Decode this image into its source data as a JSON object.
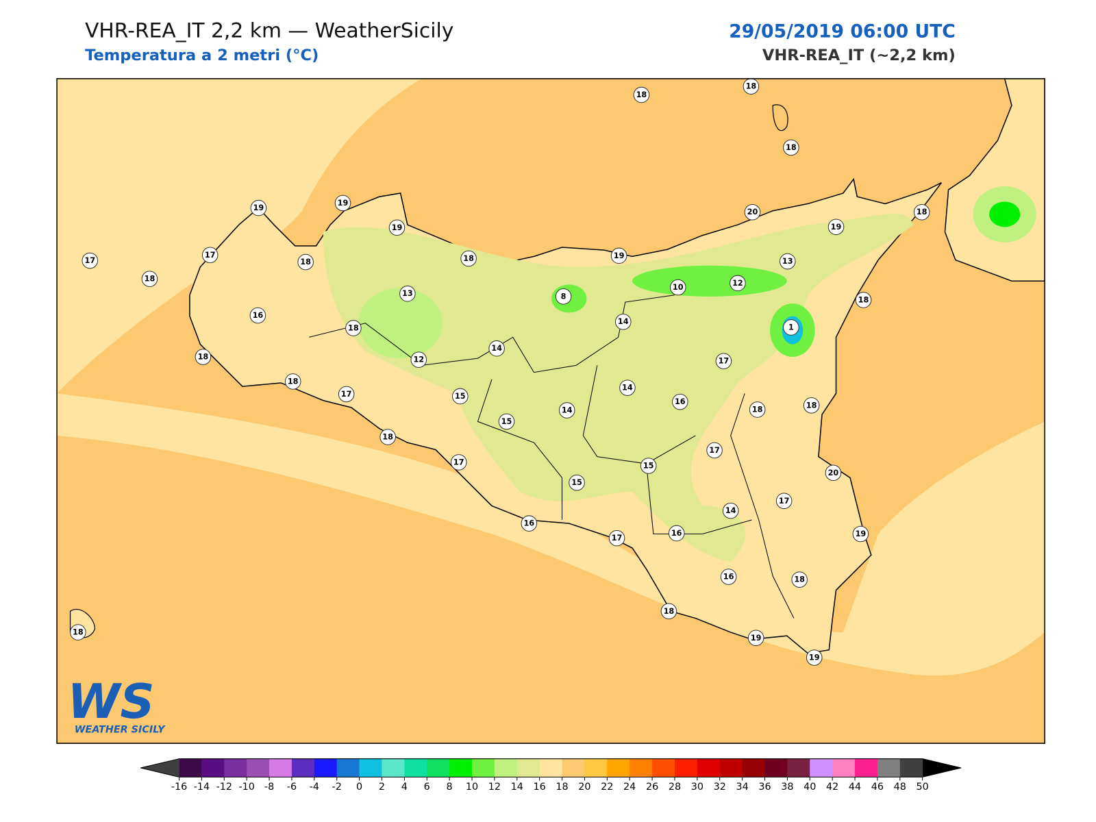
{
  "header": {
    "title": "VHR-REA_IT 2,2 km — WeatherSicily",
    "subtitle": "Temperatura a 2 metri (°C)",
    "datetime": "29/05/2019 06:00 UTC",
    "model": "VHR-REA_IT (~2,2 km)"
  },
  "stations": [
    18,
    18,
    18,
    19,
    19,
    19,
    17,
    17,
    18,
    18,
    18,
    19,
    20,
    19,
    18,
    13,
    12,
    10,
    8,
    13,
    16,
    18,
    14,
    18,
    1,
    14,
    12,
    17,
    18,
    18,
    17,
    15,
    14,
    16,
    18,
    18,
    14,
    15,
    18,
    17,
    17,
    15,
    15,
    20,
    17,
    14,
    16,
    17,
    16,
    19,
    16,
    18,
    18,
    19,
    19,
    18
  ],
  "colorbar": {
    "ticks": [
      -16,
      -14,
      -12,
      -10,
      -8,
      -6,
      -4,
      -2,
      0,
      2,
      4,
      6,
      8,
      10,
      12,
      14,
      16,
      18,
      20,
      22,
      24,
      26,
      28,
      30,
      32,
      34,
      36,
      38,
      40,
      42,
      44,
      46,
      48,
      50
    ],
    "colors": [
      "#3c0a4a",
      "#5b0e83",
      "#7a2ea0",
      "#9b4fb5",
      "#d67ae6",
      "#5b2ebf",
      "#1a1aff",
      "#1778d4",
      "#10c0e0",
      "#5ce8c8",
      "#10e0a0",
      "#10e060",
      "#00f000",
      "#70f040",
      "#c0f080",
      "#e0e890",
      "#ffe4a0",
      "#fcc870",
      "#ffc840",
      "#ffa500",
      "#ff8000",
      "#ff5000",
      "#ff2000",
      "#e00000",
      "#c00000",
      "#960000",
      "#700020",
      "#7a2040",
      "#d090ff",
      "#ff80c0",
      "#ff2090",
      "#808080",
      "#404040"
    ],
    "under_color": "#404040",
    "over_color": "#000000"
  },
  "logo": {
    "mark": "WS",
    "name": "WEATHER SICILY"
  }
}
